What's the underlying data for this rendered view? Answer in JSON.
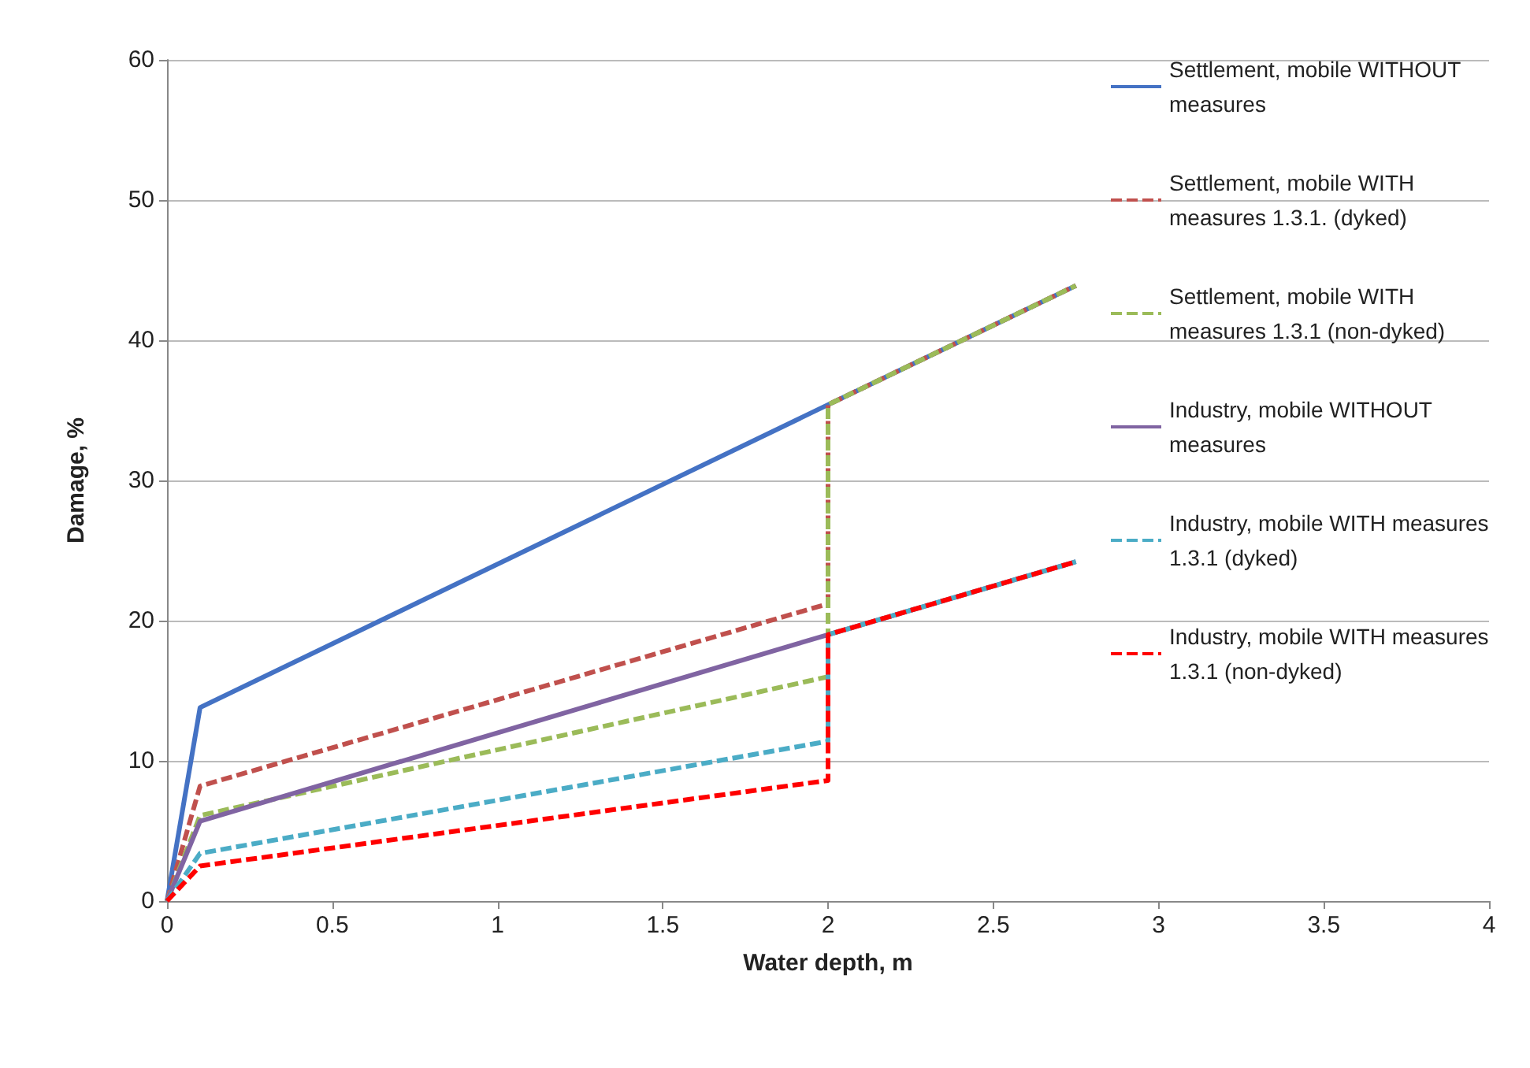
{
  "chart_data": {
    "type": "line",
    "xlabel": "Water depth, m",
    "ylabel": "Damage, %",
    "xlim": [
      0,
      4
    ],
    "xticks": [
      0,
      0.5,
      1,
      1.5,
      2,
      2.5,
      3,
      3.5,
      4
    ],
    "ylim": [
      0,
      60
    ],
    "yticks": [
      0,
      10,
      20,
      30,
      40,
      50,
      60
    ],
    "grid": "y",
    "legend": "top right",
    "marker": "none",
    "series": [
      {
        "name": "Settlement, mobile WITHOUT measures",
        "color": "#4472c4",
        "line_style": "solid",
        "x": [
          0,
          0.1,
          2,
          2.75
        ],
        "values": [
          0,
          13.8,
          35.4,
          43.9
        ]
      },
      {
        "name": "Settlement, mobile WITH measures 1.3.1. (dyked)",
        "color": "#c0504d",
        "line_style": "dashed",
        "x": [
          0,
          0.1,
          2,
          2,
          2.75
        ],
        "values": [
          0,
          8.2,
          21.2,
          35.4,
          43.9
        ]
      },
      {
        "name": "Settlement, mobile WITH measures 1.3.1 (non-dyked)",
        "color": "#9bbb59",
        "line_style": "dashed",
        "x": [
          0,
          0.1,
          2,
          2,
          2.75
        ],
        "values": [
          0,
          6.1,
          16,
          35.4,
          43.9
        ]
      },
      {
        "name": "Industry, mobile WITHOUT measures",
        "color": "#8064a2",
        "line_style": "solid",
        "x": [
          0,
          0.1,
          2,
          2.75
        ],
        "values": [
          0,
          5.7,
          19,
          24.2
        ]
      },
      {
        "name": "Industry, mobile WITH measures 1.3.1 (dyked)",
        "color": "#4bacc6",
        "line_style": "dashed",
        "x": [
          0,
          0.1,
          2,
          2,
          2.75
        ],
        "values": [
          0,
          3.4,
          11.4,
          19,
          24.2
        ]
      },
      {
        "name": "Industry, mobile WITH measures 1.3.1 (non-dyked)",
        "color": "#ff0000",
        "line_style": "dashed",
        "x": [
          0,
          0.1,
          2,
          2,
          2.75
        ],
        "values": [
          0,
          2.5,
          8.6,
          19,
          24.2
        ]
      }
    ]
  }
}
